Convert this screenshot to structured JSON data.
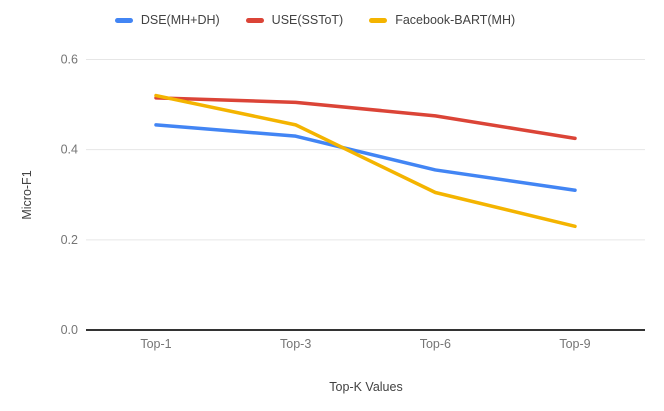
{
  "chart_data": {
    "type": "line",
    "xlabel": "Top-K Values",
    "ylabel": "Micro-F1",
    "categories": [
      "Top-1",
      "Top-3",
      "Top-6",
      "Top-9"
    ],
    "series": [
      {
        "name": "DSE(MH+DH)",
        "color": "#4285F4",
        "values": [
          0.455,
          0.43,
          0.355,
          0.31
        ]
      },
      {
        "name": "USE(SSToT)",
        "color": "#DB4437",
        "values": [
          0.515,
          0.505,
          0.475,
          0.425
        ]
      },
      {
        "name": "Facebook-BART(MH)",
        "color": "#F4B400",
        "values": [
          0.52,
          0.455,
          0.305,
          0.23
        ]
      }
    ],
    "ylim": [
      0,
      0.6
    ],
    "ytick_labels": [
      "0.0",
      "0.2",
      "0.4",
      "0.6"
    ],
    "grid": true,
    "legend_position": "top"
  }
}
